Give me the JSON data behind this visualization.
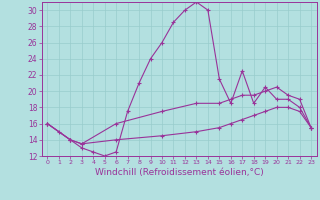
{
  "background_color": "#b3e0e0",
  "grid_color": "#99cccc",
  "line_color": "#993399",
  "marker": "+",
  "markersize": 3,
  "linewidth": 0.8,
  "xlabel": "Windchill (Refroidissement éolien,°C)",
  "xlabel_fontsize": 6.5,
  "tick_fontsize": 5.5,
  "xlim": [
    -0.5,
    23.5
  ],
  "ylim": [
    12,
    31
  ],
  "yticks": [
    12,
    14,
    16,
    18,
    20,
    22,
    24,
    26,
    28,
    30
  ],
  "xticks": [
    0,
    1,
    2,
    3,
    4,
    5,
    6,
    7,
    8,
    9,
    10,
    11,
    12,
    13,
    14,
    15,
    16,
    17,
    18,
    19,
    20,
    21,
    22,
    23
  ],
  "series": [
    {
      "x": [
        0,
        1,
        2,
        3,
        4,
        5,
        6,
        7,
        8,
        9,
        10,
        11,
        12,
        13,
        14,
        15,
        16,
        17,
        18,
        19,
        20,
        21,
        22,
        23
      ],
      "y": [
        16.0,
        15.0,
        14.0,
        13.0,
        12.5,
        12.0,
        12.5,
        17.5,
        21.0,
        24.0,
        26.0,
        28.5,
        30.0,
        31.0,
        30.0,
        21.5,
        18.5,
        22.5,
        18.5,
        20.5,
        19.0,
        19.0,
        18.0,
        15.5
      ]
    },
    {
      "x": [
        0,
        2,
        3,
        6,
        10,
        13,
        15,
        16,
        17,
        18,
        19,
        20,
        21,
        22,
        23
      ],
      "y": [
        16.0,
        14.0,
        13.5,
        16.0,
        17.5,
        18.5,
        18.5,
        19.0,
        19.5,
        19.5,
        20.0,
        20.5,
        19.5,
        19.0,
        15.5
      ]
    },
    {
      "x": [
        0,
        2,
        3,
        6,
        10,
        13,
        15,
        16,
        17,
        18,
        19,
        20,
        21,
        22,
        23
      ],
      "y": [
        16.0,
        14.0,
        13.5,
        14.0,
        14.5,
        15.0,
        15.5,
        16.0,
        16.5,
        17.0,
        17.5,
        18.0,
        18.0,
        17.5,
        15.5
      ]
    }
  ]
}
